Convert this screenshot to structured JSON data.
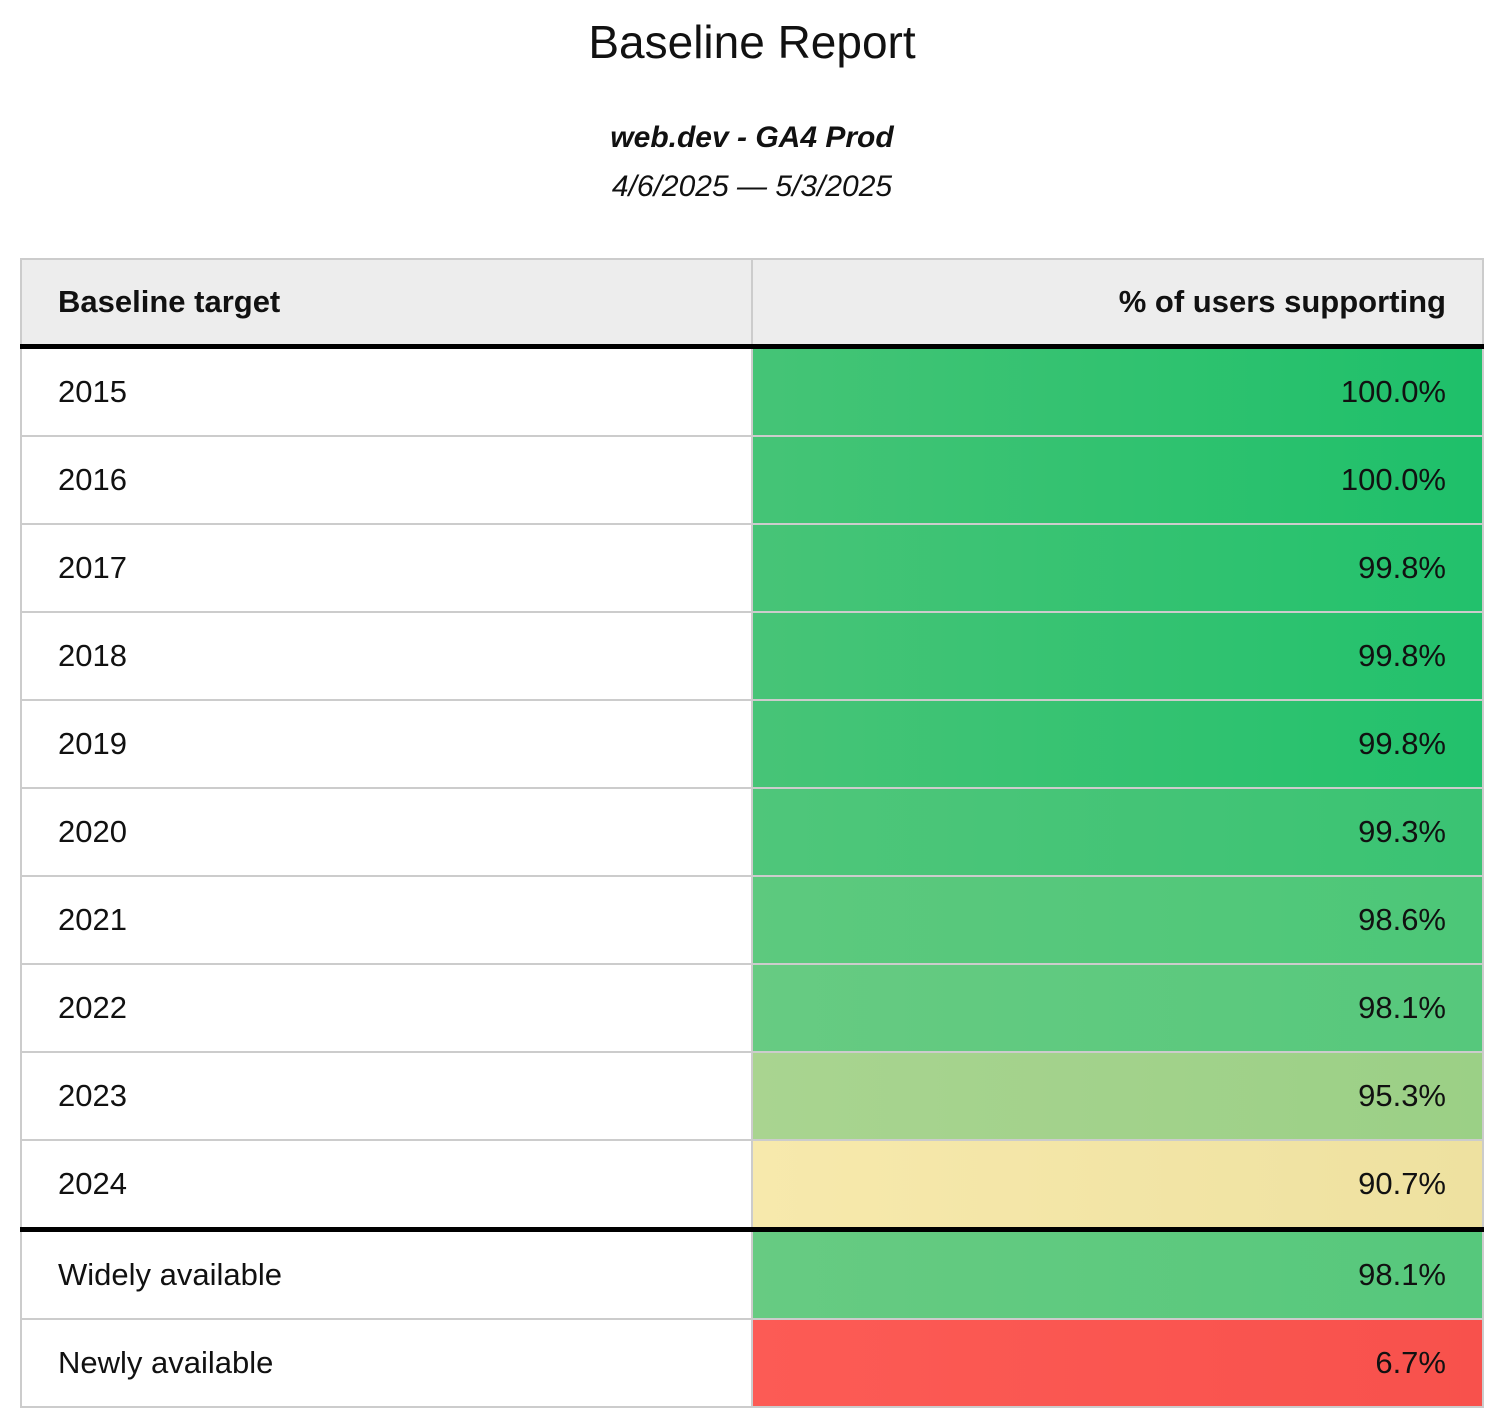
{
  "header": {
    "title": "Baseline Report",
    "subtitle": "web.dev - GA4 Prod",
    "date_range": "4/6/2025 — 5/3/2025"
  },
  "table": {
    "columns": [
      "Baseline target",
      "% of users supporting"
    ],
    "header_bg": "#ededed",
    "border_color": "#cccccc",
    "separator_color": "#000000",
    "rows": [
      {
        "target": "2015",
        "value": "100.0%",
        "section": "years",
        "bg_left": "#45c476",
        "bg_right": "#1ec06a"
      },
      {
        "target": "2016",
        "value": "100.0%",
        "section": "years",
        "bg_left": "#45c476",
        "bg_right": "#1ec06a"
      },
      {
        "target": "2017",
        "value": "99.8%",
        "section": "years",
        "bg_left": "#47c477",
        "bg_right": "#22c16c"
      },
      {
        "target": "2018",
        "value": "99.8%",
        "section": "years",
        "bg_left": "#47c477",
        "bg_right": "#22c16c"
      },
      {
        "target": "2019",
        "value": "99.8%",
        "section": "years",
        "bg_left": "#47c477",
        "bg_right": "#22c16c"
      },
      {
        "target": "2020",
        "value": "99.3%",
        "section": "years",
        "bg_left": "#4fc67a",
        "bg_right": "#3ac373"
      },
      {
        "target": "2021",
        "value": "98.6%",
        "section": "years",
        "bg_left": "#5dc97e",
        "bg_right": "#4cc778"
      },
      {
        "target": "2022",
        "value": "98.1%",
        "section": "years",
        "bg_left": "#67cb82",
        "bg_right": "#56c87c"
      },
      {
        "target": "2023",
        "value": "95.3%",
        "section": "years",
        "bg_left": "#a9d490",
        "bg_right": "#9bd086"
      },
      {
        "target": "2024",
        "value": "90.7%",
        "section": "years",
        "bg_left": "#f7e9ac",
        "bg_right": "#eee1a0"
      },
      {
        "target": "Widely available",
        "value": "98.1%",
        "section": "summary",
        "bg_left": "#67cb82",
        "bg_right": "#56c87c"
      },
      {
        "target": "Newly available",
        "value": "6.7%",
        "section": "summary",
        "bg_left": "#fc5b55",
        "bg_right": "#f8514c"
      }
    ]
  },
  "chart_data": {
    "type": "table",
    "title": "Baseline Report",
    "subtitle": "web.dev - GA4 Prod",
    "date_range": "4/6/2025 — 5/3/2025",
    "columns": [
      "Baseline target",
      "% of users supporting"
    ],
    "categories": [
      "2015",
      "2016",
      "2017",
      "2018",
      "2019",
      "2020",
      "2021",
      "2022",
      "2023",
      "2024",
      "Widely available",
      "Newly available"
    ],
    "values": [
      100.0,
      100.0,
      99.8,
      99.8,
      99.8,
      99.3,
      98.6,
      98.1,
      95.3,
      90.7,
      98.1,
      6.7
    ],
    "value_unit": "%",
    "color_scale": {
      "high": "#1ec06a",
      "mid": "#f7e9ac",
      "low": "#f8514c"
    }
  }
}
